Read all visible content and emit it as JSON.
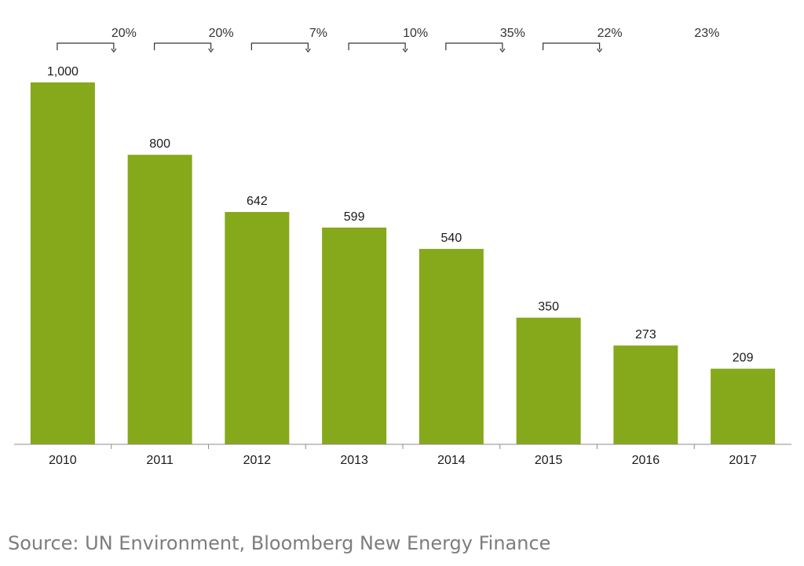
{
  "chart_data": {
    "type": "bar",
    "categories": [
      "2010",
      "2011",
      "2012",
      "2013",
      "2014",
      "2015",
      "2016",
      "2017"
    ],
    "values": [
      1000,
      800,
      642,
      599,
      540,
      350,
      273,
      209
    ],
    "value_labels": [
      "1,000",
      "800",
      "642",
      "599",
      "540",
      "350",
      "273",
      "209"
    ],
    "changes": [
      "20%",
      "20%",
      "7%",
      "10%",
      "35%",
      "22%",
      "23%"
    ],
    "title": "",
    "xlabel": "",
    "ylabel": "",
    "ylim": [
      0,
      1000
    ],
    "grid": false,
    "bar_color": "#86a81b"
  },
  "source": "Source: UN Environment, Bloomberg New Energy Finance"
}
